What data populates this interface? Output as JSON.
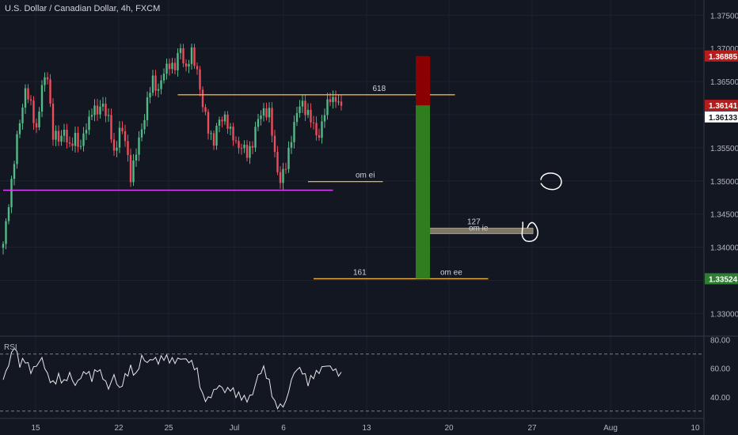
{
  "header": {
    "title": "U.S. Dollar / Canadian Dollar, 4h, FXCM"
  },
  "rsi_panel": {
    "label": "RSI"
  },
  "colors": {
    "background": "#131722",
    "up": "#53b987",
    "down": "#eb4d5c",
    "support_line": "#e040fb",
    "fib_line": "#f0b23a",
    "risk_box": "#8b0000",
    "reward_box": "#2e7d1e",
    "price_tag_red": "#b71c1c",
    "price_tag_green": "#2e7d32"
  },
  "chart_data": {
    "type": "candlestick",
    "title": "U.S. Dollar / Canadian Dollar, 4h, FXCM",
    "x_ticks": [
      "15",
      "22",
      "25",
      "Jul",
      "6",
      "13",
      "20",
      "27",
      "Aug",
      "10"
    ],
    "y_ticks": [
      "1.37500",
      "1.37000",
      "1.36500",
      "1.36000",
      "1.35500",
      "1.35000",
      "1.34500",
      "1.34000",
      "1.33500",
      "1.33000"
    ],
    "ylim": [
      1.3267,
      1.3773
    ],
    "price_tags": [
      {
        "label": "1.36885",
        "value": 1.36885,
        "style": "red"
      },
      {
        "label": "1.36141",
        "value": 1.36141,
        "style": "red"
      },
      {
        "label": "1.36133",
        "value": 1.36133,
        "style": "white"
      },
      {
        "label": "1.33524",
        "value": 1.33524,
        "style": "green"
      }
    ],
    "price_path": [
      [
        0,
        1.34
      ],
      [
        2,
        1.347
      ],
      [
        4,
        1.353
      ],
      [
        6,
        1.359
      ],
      [
        8,
        1.364
      ],
      [
        10,
        1.361
      ],
      [
        12,
        1.358
      ],
      [
        14,
        1.364
      ],
      [
        16,
        1.366
      ],
      [
        18,
        1.357
      ],
      [
        20,
        1.356
      ],
      [
        22,
        1.358
      ],
      [
        24,
        1.3545
      ],
      [
        26,
        1.357
      ],
      [
        28,
        1.355
      ],
      [
        30,
        1.358
      ],
      [
        32,
        1.361
      ],
      [
        34,
        1.36
      ],
      [
        36,
        1.362
      ],
      [
        38,
        1.359
      ],
      [
        40,
        1.354
      ],
      [
        42,
        1.358
      ],
      [
        44,
        1.356
      ],
      [
        46,
        1.351
      ],
      [
        48,
        1.354
      ],
      [
        50,
        1.358
      ],
      [
        52,
        1.362
      ],
      [
        54,
        1.365
      ],
      [
        56,
        1.364
      ],
      [
        58,
        1.366
      ],
      [
        60,
        1.368
      ],
      [
        62,
        1.367
      ],
      [
        64,
        1.37
      ],
      [
        66,
        1.367
      ],
      [
        68,
        1.369
      ],
      [
        70,
        1.367
      ],
      [
        72,
        1.361
      ],
      [
        74,
        1.358
      ],
      [
        76,
        1.356
      ],
      [
        78,
        1.359
      ],
      [
        80,
        1.36
      ],
      [
        82,
        1.357
      ],
      [
        84,
        1.356
      ],
      [
        86,
        1.355
      ],
      [
        88,
        1.354
      ],
      [
        90,
        1.356
      ],
      [
        92,
        1.359
      ],
      [
        94,
        1.361
      ],
      [
        96,
        1.36
      ],
      [
        98,
        1.354
      ],
      [
        100,
        1.35
      ],
      [
        102,
        1.352
      ],
      [
        104,
        1.357
      ],
      [
        106,
        1.36
      ],
      [
        108,
        1.362
      ],
      [
        110,
        1.36
      ],
      [
        112,
        1.358
      ],
      [
        114,
        1.357
      ],
      [
        116,
        1.36
      ],
      [
        118,
        1.363
      ],
      [
        120,
        1.362
      ],
      [
        122,
        1.361
      ]
    ],
    "rsi": {
      "name": "RSI",
      "y_ticks": [
        "80.00",
        "60.00",
        "40.00"
      ],
      "ylim": [
        26,
        82
      ],
      "levels": [
        70,
        30
      ],
      "values": [
        [
          0,
          52
        ],
        [
          2,
          63
        ],
        [
          4,
          76
        ],
        [
          6,
          63
        ],
        [
          8,
          66
        ],
        [
          10,
          58
        ],
        [
          12,
          62
        ],
        [
          14,
          67
        ],
        [
          16,
          55
        ],
        [
          18,
          49
        ],
        [
          20,
          54
        ],
        [
          22,
          50
        ],
        [
          24,
          56
        ],
        [
          26,
          48
        ],
        [
          28,
          54
        ],
        [
          30,
          58
        ],
        [
          32,
          53
        ],
        [
          34,
          60
        ],
        [
          36,
          54
        ],
        [
          38,
          46
        ],
        [
          40,
          55
        ],
        [
          42,
          45
        ],
        [
          44,
          54
        ],
        [
          46,
          60
        ],
        [
          48,
          55
        ],
        [
          50,
          68
        ],
        [
          52,
          64
        ],
        [
          54,
          67
        ],
        [
          56,
          65
        ],
        [
          58,
          68
        ],
        [
          60,
          66
        ],
        [
          62,
          65
        ],
        [
          64,
          67
        ],
        [
          66,
          66
        ],
        [
          68,
          64
        ],
        [
          70,
          58
        ],
        [
          72,
          40
        ],
        [
          74,
          38
        ],
        [
          76,
          44
        ],
        [
          78,
          48
        ],
        [
          80,
          44
        ],
        [
          82,
          46
        ],
        [
          84,
          42
        ],
        [
          86,
          40
        ],
        [
          88,
          38
        ],
        [
          90,
          42
        ],
        [
          92,
          55
        ],
        [
          94,
          60
        ],
        [
          96,
          50
        ],
        [
          98,
          35
        ],
        [
          100,
          33
        ],
        [
          102,
          36
        ],
        [
          104,
          52
        ],
        [
          106,
          60
        ],
        [
          108,
          58
        ],
        [
          110,
          50
        ],
        [
          112,
          55
        ],
        [
          114,
          58
        ],
        [
          116,
          62
        ],
        [
          118,
          61
        ],
        [
          120,
          58
        ],
        [
          122,
          55
        ]
      ]
    },
    "annotations": [
      {
        "type": "hline",
        "name": "support",
        "value": 1.3486,
        "x_from": 0,
        "x_to": 119,
        "color": "support_line"
      },
      {
        "type": "hline",
        "name": "fib-618",
        "value": 1.363,
        "x_from": 63,
        "x_to": 163,
        "label": "618"
      },
      {
        "type": "hline",
        "name": "om-ei",
        "value": 1.3499,
        "x_from": 110,
        "x_to": 137,
        "label": "om ei"
      },
      {
        "type": "band",
        "name": "fib-127-band",
        "value": 1.3424,
        "x_from": 106,
        "x_to": 132,
        "label": "127",
        "label2": "om ie"
      },
      {
        "type": "hline",
        "name": "fib-161",
        "value": 1.33524,
        "x_from": 112,
        "x_to": 175,
        "label": "161",
        "label2": "om ee"
      },
      {
        "type": "position",
        "name": "short-position",
        "entry": 1.36141,
        "stop": 1.36885,
        "target": 1.33524,
        "x_from": 103,
        "x_to": 106
      }
    ]
  }
}
